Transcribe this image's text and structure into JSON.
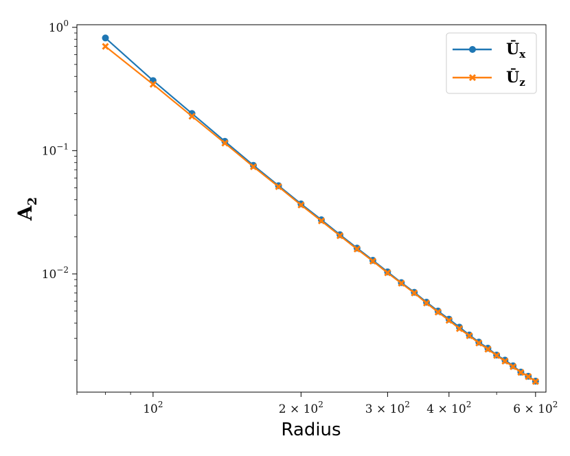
{
  "chart_data": {
    "type": "line",
    "xscale": "log",
    "yscale": "log",
    "xlabel": "Radius",
    "ylabel": "A",
    "ylabel_sub": "2",
    "xlim": [
      70,
      630
    ],
    "ylim": [
      0.0011,
      1.05
    ],
    "x_ticks": [
      {
        "value": 100,
        "base": "10",
        "exp": "2"
      },
      {
        "value": 200,
        "base": "2 × 10",
        "exp": "2"
      },
      {
        "value": 300,
        "base": "3 × 10",
        "exp": "2"
      },
      {
        "value": 400,
        "base": "4 × 10",
        "exp": "2"
      },
      {
        "value": 600,
        "base": "6 × 10",
        "exp": "2"
      }
    ],
    "y_ticks": [
      {
        "value": 1,
        "base": "10",
        "exp": "0"
      },
      {
        "value": 0.1,
        "base": "10",
        "exp": "−1"
      },
      {
        "value": 0.01,
        "base": "10",
        "exp": "−2"
      }
    ],
    "legend_position": "top-right",
    "x": [
      80,
      100,
      120,
      140,
      160,
      180,
      200,
      220,
      240,
      260,
      280,
      300,
      320,
      340,
      360,
      380,
      400,
      420,
      440,
      460,
      480,
      500,
      520,
      540,
      560,
      580,
      600
    ],
    "series": [
      {
        "name": "Ū",
        "name_sub": "x",
        "color": "#1f77b4",
        "marker": "circle",
        "values": [
          0.82,
          0.37,
          0.2,
          0.119,
          0.076,
          0.052,
          0.037,
          0.0275,
          0.0208,
          0.0162,
          0.0129,
          0.0104,
          0.0085,
          0.0071,
          0.0059,
          0.005,
          0.0043,
          0.0037,
          0.0032,
          0.0028,
          0.0025,
          0.0022,
          0.002,
          0.0018,
          0.0016,
          0.00148,
          0.00135
        ]
      },
      {
        "name": "Ū",
        "name_sub": "z",
        "color": "#ff7f0e",
        "marker": "x",
        "values": [
          0.7,
          0.345,
          0.19,
          0.115,
          0.074,
          0.051,
          0.0362,
          0.0269,
          0.0204,
          0.0159,
          0.0127,
          0.0102,
          0.0084,
          0.007,
          0.0058,
          0.0049,
          0.0042,
          0.0036,
          0.00315,
          0.00275,
          0.00245,
          0.00218,
          0.00196,
          0.00177,
          0.00159,
          0.00147,
          0.00134
        ]
      }
    ]
  }
}
